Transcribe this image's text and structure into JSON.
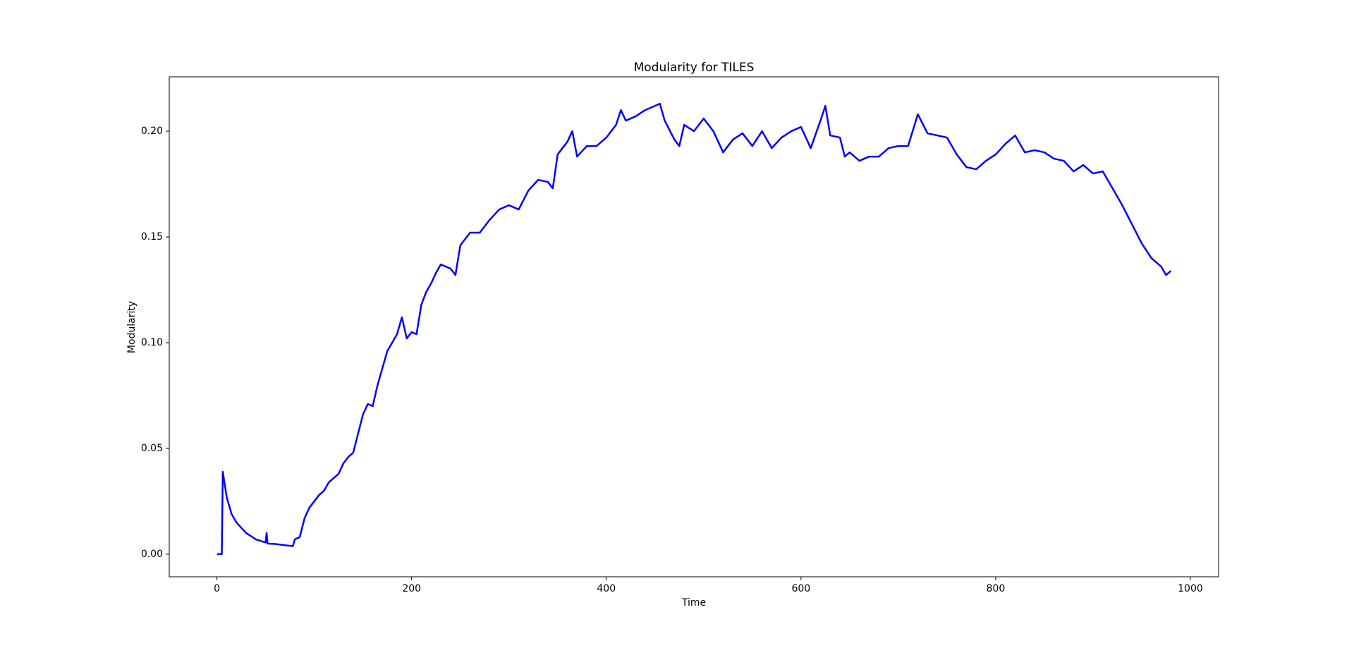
{
  "chart_data": {
    "type": "line",
    "title": "Modularity for TILES",
    "xlabel": "Time",
    "ylabel": "Modularity",
    "color": "#0000ff",
    "x": [
      0,
      5,
      6,
      10,
      15,
      20,
      30,
      40,
      50,
      51,
      52,
      60,
      70,
      78,
      80,
      85,
      90,
      95,
      100,
      105,
      110,
      115,
      120,
      125,
      130,
      135,
      140,
      145,
      150,
      155,
      160,
      165,
      170,
      175,
      180,
      185,
      190,
      195,
      200,
      205,
      210,
      215,
      220,
      225,
      230,
      240,
      245,
      250,
      260,
      270,
      280,
      290,
      300,
      310,
      320,
      330,
      340,
      345,
      350,
      360,
      365,
      370,
      380,
      390,
      400,
      410,
      415,
      420,
      430,
      440,
      450,
      455,
      460,
      470,
      475,
      480,
      490,
      500,
      510,
      520,
      530,
      540,
      550,
      560,
      570,
      580,
      590,
      600,
      610,
      620,
      625,
      630,
      640,
      645,
      650,
      660,
      670,
      680,
      690,
      700,
      710,
      720,
      730,
      740,
      750,
      760,
      770,
      780,
      790,
      800,
      810,
      820,
      830,
      840,
      850,
      860,
      870,
      880,
      890,
      900,
      910,
      920,
      930,
      940,
      950,
      960,
      970,
      975,
      980
    ],
    "values": [
      0,
      0,
      0.039,
      0.027,
      0.019,
      0.015,
      0.01,
      0.007,
      0.0055,
      0.01,
      0.005,
      0.0048,
      0.0042,
      0.0038,
      0.007,
      0.008,
      0.017,
      0.022,
      0.025,
      0.028,
      0.03,
      0.034,
      0.036,
      0.038,
      0.043,
      0.046,
      0.048,
      0.057,
      0.066,
      0.071,
      0.07,
      0.08,
      0.088,
      0.096,
      0.1,
      0.104,
      0.112,
      0.102,
      0.105,
      0.104,
      0.118,
      0.124,
      0.128,
      0.133,
      0.137,
      0.135,
      0.132,
      0.146,
      0.152,
      0.152,
      0.158,
      0.163,
      0.165,
      0.163,
      0.172,
      0.177,
      0.176,
      0.173,
      0.189,
      0.195,
      0.2,
      0.188,
      0.193,
      0.193,
      0.197,
      0.203,
      0.21,
      0.205,
      0.207,
      0.21,
      0.212,
      0.213,
      0.205,
      0.196,
      0.193,
      0.203,
      0.2,
      0.206,
      0.2,
      0.19,
      0.196,
      0.199,
      0.193,
      0.2,
      0.192,
      0.197,
      0.2,
      0.202,
      0.192,
      0.205,
      0.212,
      0.198,
      0.197,
      0.188,
      0.19,
      0.186,
      0.188,
      0.188,
      0.192,
      0.193,
      0.193,
      0.208,
      0.199,
      0.198,
      0.197,
      0.189,
      0.183,
      0.182,
      0.186,
      0.189,
      0.194,
      0.198,
      0.19,
      0.191,
      0.19,
      0.187,
      0.186,
      0.181,
      0.184,
      0.18,
      0.181,
      0.173,
      0.165,
      0.156,
      0.147,
      0.14,
      0.136,
      0.132,
      0.134
    ],
    "xlim": [
      -49,
      1029
    ],
    "xticks": [
      0,
      200,
      400,
      600,
      800,
      1000
    ],
    "ylim": [
      -0.0107,
      0.2257
    ],
    "yticks": [
      {
        "value": 0,
        "label": "0.00"
      },
      {
        "value": 0.05,
        "label": "0.05"
      },
      {
        "value": 0.1,
        "label": "0.10"
      },
      {
        "value": 0.15,
        "label": "0.15"
      },
      {
        "value": 0.2,
        "label": "0.20"
      }
    ]
  }
}
